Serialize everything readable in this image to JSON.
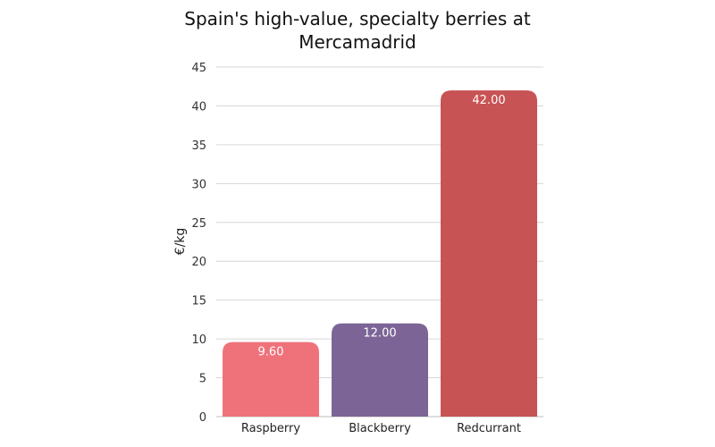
{
  "chart_data": {
    "type": "bar",
    "title": "Spain's high-value, specialty berries at Mercamadrid",
    "xlabel": "",
    "ylabel": "€/kg",
    "categories": [
      "Raspberry",
      "Blackberry",
      "Redcurrant"
    ],
    "values": [
      9.6,
      12.0,
      42.0
    ],
    "data_labels": [
      "9.60",
      "12.00",
      "42.00"
    ],
    "colors": [
      "#ef727b",
      "#7c6596",
      "#c85354"
    ],
    "ylim": [
      0,
      45
    ],
    "yticks": [
      0,
      5,
      10,
      15,
      20,
      25,
      30,
      35,
      40,
      45
    ],
    "grid": true,
    "legend": "none"
  }
}
